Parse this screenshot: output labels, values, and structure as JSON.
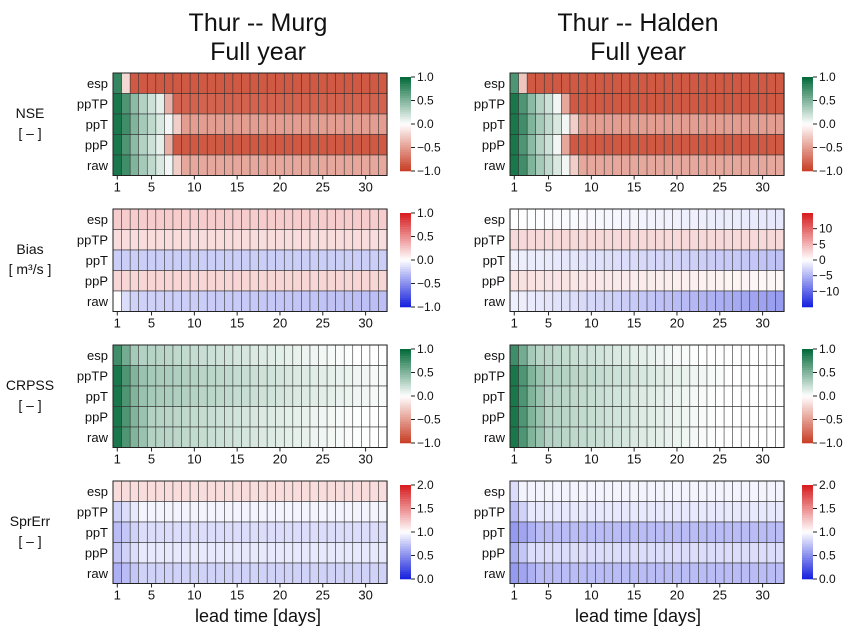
{
  "titles": [
    {
      "line1": "Thur -- Murg",
      "line2": "Full year"
    },
    {
      "line1": "Thur -- Halden",
      "line2": "Full year"
    }
  ],
  "xlabel": "lead time [days]",
  "rows": [
    "esp",
    "ppTP",
    "ppT",
    "ppP",
    "raw"
  ],
  "x_ticks": [
    "1",
    "5",
    "10",
    "15",
    "20",
    "25",
    "30"
  ],
  "lead_days": 32,
  "metrics": [
    {
      "name": "NSE",
      "unit": "[ – ]",
      "palette": "green-red",
      "colorbar": [
        {
          "label": "1.0",
          "value": 1.0
        },
        {
          "label": "0.5",
          "value": 0.5
        },
        {
          "label": "0.0",
          "value": 0.0
        },
        {
          "label": "−0.5",
          "value": -0.5
        },
        {
          "label": "−1.0",
          "value": -1.0
        }
      ]
    },
    {
      "name": "Bias",
      "unit": "[ m³/s ]",
      "palette": "red-blue",
      "colorbar": [
        {
          "label": "1.0",
          "value": 1.0
        },
        {
          "label": "0.5",
          "value": 0.5
        },
        {
          "label": "0.0",
          "value": 0.0
        },
        {
          "label": "−0.5",
          "value": -0.5
        },
        {
          "label": "−1.0",
          "value": -1.0
        }
      ]
    },
    {
      "name": "CRPSS",
      "unit": "[ – ]",
      "palette": "green-red",
      "colorbar": [
        {
          "label": "1.0",
          "value": 1.0
        },
        {
          "label": "0.5",
          "value": 0.5
        },
        {
          "label": "0.0",
          "value": 0.0
        },
        {
          "label": "−0.5",
          "value": -0.5
        },
        {
          "label": "−1.0",
          "value": -1.0
        }
      ]
    },
    {
      "name": "SprErr",
      "unit": "[ – ]",
      "palette": "red-blue",
      "colorbar": [
        {
          "label": "2.0",
          "value": 2.0
        },
        {
          "label": "1.5",
          "value": 1.5
        },
        {
          "label": "1.0",
          "value": 1.0
        },
        {
          "label": "0.5",
          "value": 0.5
        },
        {
          "label": "0.0",
          "value": 0.0
        }
      ]
    }
  ],
  "right_colorbars": {
    "Bias": [
      {
        "label": "10",
        "value": 10
      },
      {
        "label": "5",
        "value": 5
      },
      {
        "label": "0",
        "value": 0
      },
      {
        "label": "−5",
        "value": -5
      },
      {
        "label": "−10",
        "value": -10
      }
    ]
  },
  "chart_data": [
    {
      "type": "heatmap",
      "title": "Thur -- Murg  Full year",
      "xlabel": "lead time [days]",
      "panels": [
        {
          "metric": "NSE",
          "range": [
            -1,
            1
          ],
          "rows": {
            "esp": {
              "start": [
                0.8
              ],
              "decay": 1.0,
              "floor": -0.85
            },
            "ppTP": {
              "start": [
                0.9,
                0.7,
                0.45,
                0.3,
                0.2,
                0.1
              ],
              "decay": 0.5,
              "floor": -0.8
            },
            "ppT": {
              "start": [
                0.9,
                0.75,
                0.5,
                0.35,
                0.25,
                0.15,
                0.05
              ],
              "decay": 0.3,
              "floor": -0.5
            },
            "ppP": {
              "start": [
                0.9,
                0.7,
                0.45,
                0.3,
                0.2,
                0.1
              ],
              "decay": 0.5,
              "floor": -0.85
            },
            "raw": {
              "start": [
                0.9,
                0.75,
                0.5,
                0.35,
                0.25,
                0.15,
                0.05
              ],
              "decay": 0.3,
              "floor": -0.45
            }
          }
        },
        {
          "metric": "Bias",
          "range": [
            -1,
            1
          ],
          "rows": {
            "esp": {
              "values": [
                0.22
              ],
              "step": 0.0
            },
            "ppTP": {
              "values": [
                0.15
              ],
              "step": 0.0
            },
            "ppT": {
              "values": [
                -0.22
              ],
              "step": 0.0
            },
            "ppP": {
              "values": [
                0.18
              ],
              "step": 0.0
            },
            "raw": {
              "values": [
                0.0,
                -0.15,
                -0.2
              ],
              "step": -0.003
            }
          }
        },
        {
          "metric": "CRPSS",
          "range": [
            -1,
            1
          ],
          "rows": {
            "esp": {
              "start": [
                0.75,
                0.55,
                0.35
              ],
              "decay": 0.012,
              "floor": 0.0,
              "base": 0.3
            },
            "ppTP": {
              "start": [
                0.9,
                0.7,
                0.5,
                0.4
              ],
              "decay": 0.012,
              "floor": 0.0,
              "base": 0.35
            },
            "ppT": {
              "start": [
                0.9,
                0.7,
                0.5,
                0.4
              ],
              "decay": 0.012,
              "floor": 0.0,
              "base": 0.35
            },
            "ppP": {
              "start": [
                0.9,
                0.7,
                0.5,
                0.4
              ],
              "decay": 0.012,
              "floor": 0.0,
              "base": 0.3
            },
            "raw": {
              "start": [
                0.9,
                0.7,
                0.5,
                0.4
              ],
              "decay": 0.012,
              "floor": 0.0,
              "base": 0.3
            }
          }
        },
        {
          "metric": "SprErr",
          "range": [
            0,
            2
          ],
          "rows": {
            "esp": {
              "values": [
                1.15
              ],
              "step": 0.0
            },
            "ppTP": {
              "values": [
                0.8,
                0.85,
                0.9,
                0.95
              ],
              "step": 0.0
            },
            "ppT": {
              "values": [
                0.7,
                0.75,
                0.8,
                0.85
              ],
              "step": 0.0
            },
            "ppP": {
              "values": [
                0.75,
                0.8,
                0.85,
                0.9
              ],
              "step": 0.0
            },
            "raw": {
              "values": [
                0.65,
                0.7,
                0.75,
                0.8
              ],
              "step": 0.0
            }
          }
        }
      ]
    },
    {
      "type": "heatmap",
      "title": "Thur -- Halden  Full year",
      "xlabel": "lead time [days]",
      "panels": [
        {
          "metric": "NSE",
          "range": [
            -1,
            1
          ],
          "rows": {
            "esp": {
              "start": [
                0.7
              ],
              "decay": 1.0,
              "floor": -0.85
            },
            "ppTP": {
              "start": [
                0.9,
                0.7,
                0.45,
                0.3,
                0.2,
                0.05
              ],
              "decay": 0.5,
              "floor": -0.85
            },
            "ppT": {
              "start": [
                0.9,
                0.75,
                0.5,
                0.35,
                0.25,
                0.15,
                0.05
              ],
              "decay": 0.3,
              "floor": -0.5
            },
            "ppP": {
              "start": [
                0.9,
                0.7,
                0.45,
                0.3,
                0.2,
                0.05
              ],
              "decay": 0.5,
              "floor": -0.85
            },
            "raw": {
              "start": [
                0.9,
                0.75,
                0.5,
                0.35,
                0.25,
                0.15,
                0.05
              ],
              "decay": 0.3,
              "floor": -0.45
            }
          }
        },
        {
          "metric": "Bias",
          "range": [
            -15,
            15
          ],
          "rows": {
            "esp": {
              "values": [
                0.0
              ],
              "step": -0.05
            },
            "ppTP": {
              "values": [
                2.5
              ],
              "step": 0.0
            },
            "ppT": {
              "values": [
                -1.0
              ],
              "step": -0.1
            },
            "ppP": {
              "values": [
                2.0
              ],
              "step": -0.05
            },
            "raw": {
              "values": [
                -1.0
              ],
              "step": -0.18
            }
          }
        },
        {
          "metric": "CRPSS",
          "range": [
            -1,
            1
          ],
          "rows": {
            "esp": {
              "start": [
                0.75,
                0.55,
                0.35
              ],
              "decay": 0.015,
              "floor": 0.0,
              "base": 0.28
            },
            "ppTP": {
              "start": [
                0.9,
                0.7,
                0.5,
                0.4
              ],
              "decay": 0.015,
              "floor": 0.0,
              "base": 0.32
            },
            "ppT": {
              "start": [
                0.9,
                0.7,
                0.5,
                0.4
              ],
              "decay": 0.015,
              "floor": 0.0,
              "base": 0.3
            },
            "ppP": {
              "start": [
                0.9,
                0.7,
                0.5,
                0.4
              ],
              "decay": 0.015,
              "floor": 0.0,
              "base": 0.3
            },
            "raw": {
              "start": [
                0.9,
                0.7,
                0.5,
                0.4
              ],
              "decay": 0.015,
              "floor": 0.0,
              "base": 0.3
            }
          }
        },
        {
          "metric": "SprErr",
          "range": [
            0,
            2
          ],
          "rows": {
            "esp": {
              "values": [
                0.85,
                0.95
              ],
              "step": 0.0
            },
            "ppTP": {
              "values": [
                0.7,
                0.8,
                0.9
              ],
              "step": 0.0
            },
            "ppT": {
              "values": [
                0.55,
                0.6,
                0.65,
                0.7
              ],
              "step": 0.0
            },
            "ppP": {
              "values": [
                0.65,
                0.75,
                0.85
              ],
              "step": 0.0
            },
            "raw": {
              "values": [
                0.55,
                0.6,
                0.65,
                0.7
              ],
              "step": 0.0
            }
          }
        }
      ]
    }
  ]
}
